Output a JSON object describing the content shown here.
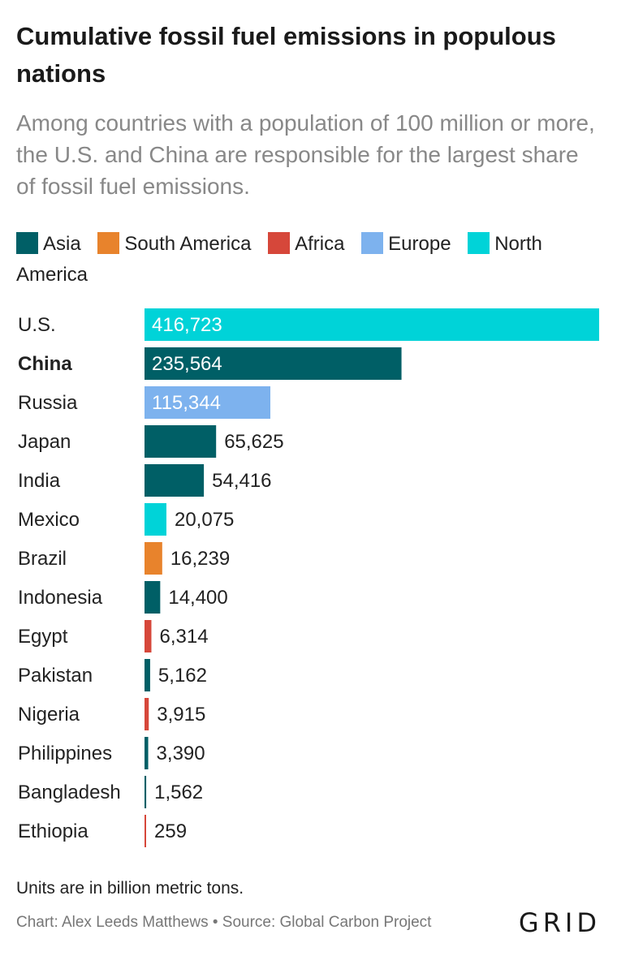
{
  "header": {
    "title": "Cumulative fossil fuel emissions in populous nations",
    "subtitle": "Among countries with a population of 100 million or more, the U.S. and China are responsible for the largest share of fossil fuel emissions."
  },
  "legend": [
    {
      "label": "Asia",
      "color": "#005f66"
    },
    {
      "label": "South America",
      "color": "#e8832c"
    },
    {
      "label": "Africa",
      "color": "#d6473a"
    },
    {
      "label": "Europe",
      "color": "#7db2ee"
    },
    {
      "label": "North America",
      "color": "#00d3d8"
    }
  ],
  "chart_data": {
    "type": "bar",
    "orientation": "horizontal",
    "title": "Cumulative fossil fuel emissions in populous nations",
    "categories": [
      "U.S.",
      "China",
      "Russia",
      "Japan",
      "India",
      "Mexico",
      "Brazil",
      "Indonesia",
      "Egypt",
      "Pakistan",
      "Nigeria",
      "Philippines",
      "Bangladesh",
      "Ethiopia"
    ],
    "values": [
      416723,
      235564,
      115344,
      65625,
      54416,
      20075,
      16239,
      14400,
      6314,
      5162,
      3915,
      3390,
      1562,
      259
    ],
    "labels": [
      "416,723",
      "235,564",
      "115,344",
      "65,625",
      "54,416",
      "20,075",
      "16,239",
      "14,400",
      "6,314",
      "5,162",
      "3,915",
      "3,390",
      "1,562",
      "259"
    ],
    "regions": [
      "North America",
      "Asia",
      "Europe",
      "Asia",
      "Asia",
      "North America",
      "South America",
      "Asia",
      "Africa",
      "Asia",
      "Africa",
      "Asia",
      "Asia",
      "Africa"
    ],
    "highlighted": [
      "China"
    ],
    "xlim": [
      0,
      416723
    ],
    "grid": false,
    "legend_position": "top"
  },
  "footer": {
    "note": "Units are in billion metric tons.",
    "credit": "Chart: Alex Leeds Matthews • Source: Global Carbon Project",
    "logo": "GRID"
  }
}
